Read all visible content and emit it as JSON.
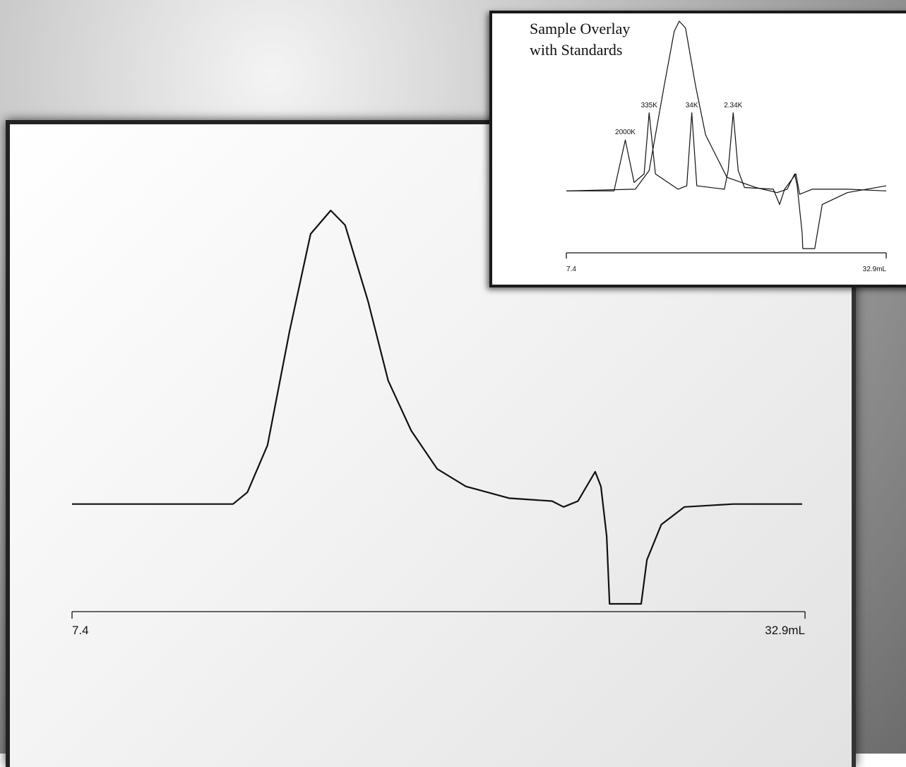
{
  "chart_data": [
    {
      "type": "line",
      "series": [
        {
          "color": "#111111",
          "x": [
            7.4,
            13.0,
            13.5,
            14.2,
            14.97,
            15.7,
            16.4,
            16.9,
            17.7,
            18.4,
            19.2,
            20.1,
            21.1,
            22.6,
            24.1,
            24.5,
            25.0,
            25.3,
            25.6,
            25.8,
            26.0,
            26.1,
            27.2,
            27.4,
            27.9,
            28.7,
            30.4,
            32.8
          ],
          "values": [
            0,
            0,
            4,
            20,
            59,
            92,
            100,
            95,
            69,
            42,
            25,
            12,
            6,
            2,
            1,
            -1,
            1,
            6,
            11,
            6,
            -11,
            -34,
            -34,
            -19,
            -7,
            -1,
            0,
            0
          ]
        }
      ],
      "xlim": [
        7.4,
        32.9
      ],
      "xticks": [
        7.4,
        {
          "value": 32.9,
          "label": "32.9mL"
        }
      ],
      "ylim": [
        -34,
        100
      ]
    },
    {
      "type": "line",
      "title": "Sample Overlay with Standards",
      "series": [
        {
          "color": "#111111",
          "x": [
            7.4,
            12.9,
            14.0,
            15.2,
            16.0,
            16.4,
            16.9,
            17.7,
            18.5,
            20.2,
            22.5,
            24.2,
            25.0,
            25.6,
            25.8,
            26.2,
            26.25,
            27.2,
            27.8,
            29.8,
            32.9
          ],
          "values": [
            0,
            1,
            12,
            62,
            94,
            100,
            96,
            62,
            33,
            8,
            2,
            -1,
            1,
            10,
            3,
            -25,
            -34,
            -34,
            -8,
            -1,
            3
          ]
        },
        {
          "color": "#111111",
          "x": [
            7.4,
            11.2,
            12.1,
            12.8,
            13.6,
            14.0,
            14.5,
            16.3,
            17.0,
            17.4,
            17.8,
            20.0,
            20.3,
            20.7,
            21.1,
            21.6,
            23.9,
            24.4,
            24.8,
            25.7,
            26.0,
            27.0,
            29.8,
            32.9
          ],
          "values": [
            0,
            0,
            30,
            5,
            10,
            46,
            10,
            1,
            3,
            46,
            3,
            1,
            12,
            46,
            12,
            2,
            1,
            -8,
            1,
            10,
            -2,
            1,
            1,
            0
          ]
        }
      ],
      "annotations": [
        {
          "text": "2000K",
          "x": 12.1,
          "y": 30
        },
        {
          "text": "335K",
          "x": 14.0,
          "y": 46
        },
        {
          "text": "34K",
          "x": 17.4,
          "y": 46
        },
        {
          "text": "2.34K",
          "x": 20.7,
          "y": 46
        }
      ],
      "xlim": [
        7.4,
        32.9
      ],
      "xticks": [
        7.4,
        {
          "value": 32.9,
          "label": "32.9mL"
        }
      ],
      "ylim": [
        -34,
        100
      ]
    }
  ]
}
